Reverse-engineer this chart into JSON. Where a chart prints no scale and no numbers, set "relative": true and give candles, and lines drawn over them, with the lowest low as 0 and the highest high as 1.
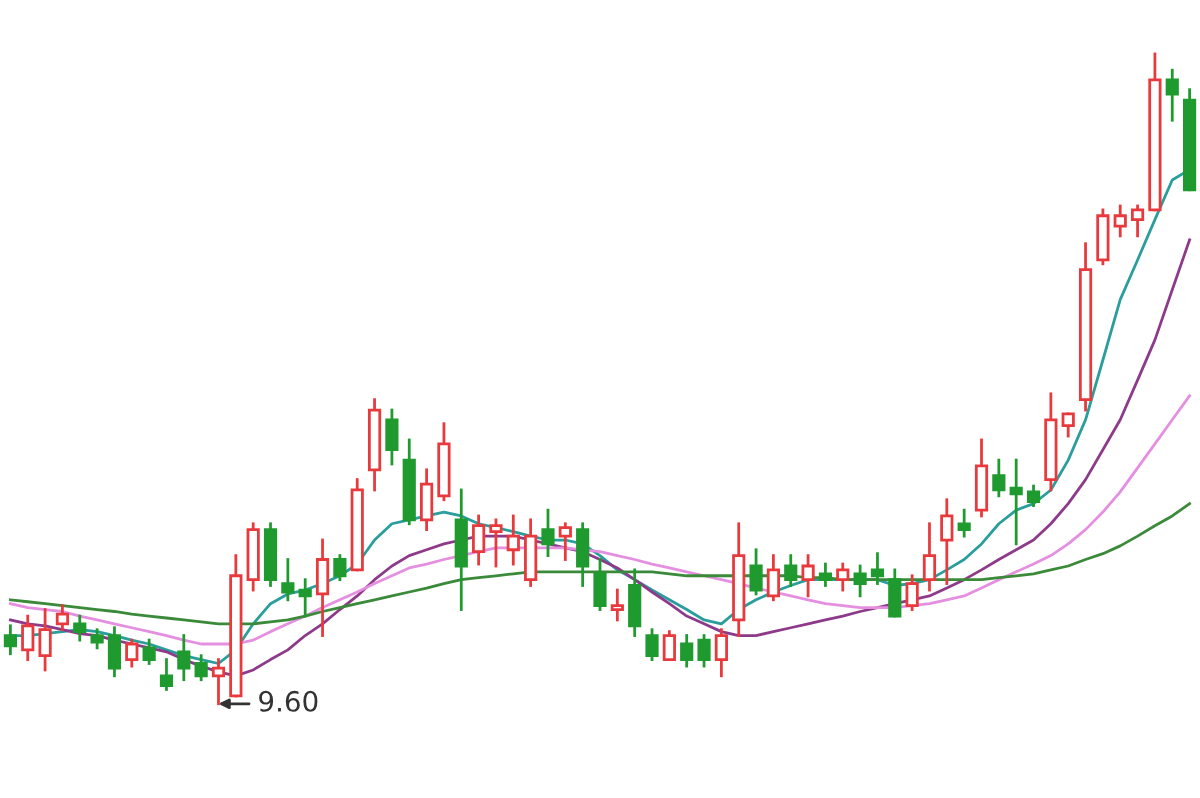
{
  "chart_data": {
    "type": "candlestick",
    "relative": true,
    "categories": [
      null,
      null,
      null,
      null,
      null,
      null,
      null,
      null,
      null,
      null,
      null,
      null,
      null,
      null,
      null,
      null,
      null,
      null,
      null,
      null,
      null,
      null,
      null,
      null,
      null,
      null,
      null,
      null,
      null,
      null,
      null,
      null,
      null,
      null,
      null,
      null,
      null,
      null,
      null,
      null,
      null,
      null,
      null,
      null,
      null,
      null,
      null,
      null,
      null,
      null,
      null,
      null,
      null,
      null,
      null,
      null,
      null,
      null,
      null,
      null,
      null,
      null,
      null,
      null,
      null,
      null,
      null,
      null,
      null
    ],
    "ohlc": [
      [
        0.105,
        0.12,
        0.077,
        0.089
      ],
      [
        0.083,
        0.135,
        0.068,
        0.12
      ],
      [
        0.074,
        0.145,
        0.052,
        0.114
      ],
      [
        0.123,
        0.151,
        0.114,
        0.138
      ],
      [
        0.123,
        0.135,
        0.098,
        0.111
      ],
      [
        0.105,
        0.114,
        0.086,
        0.095
      ],
      [
        0.105,
        0.117,
        0.043,
        0.055
      ],
      [
        0.068,
        0.098,
        0.058,
        0.092
      ],
      [
        0.086,
        0.098,
        0.062,
        0.068
      ],
      [
        0.043,
        0.068,
        0.022,
        0.028
      ],
      [
        0.08,
        0.105,
        0.037,
        0.055
      ],
      [
        0.062,
        0.074,
        0.037,
        0.043
      ],
      [
        0.043,
        0.068,
        0,
        0.055
      ],
      [
        0.012,
        0.228,
        0.012,
        0.197
      ],
      [
        0.191,
        0.277,
        0.175,
        0.268
      ],
      [
        0.268,
        0.277,
        0.182,
        0.191
      ],
      [
        0.185,
        0.222,
        0.16,
        0.172
      ],
      [
        0.175,
        0.191,
        0.135,
        0.166
      ],
      [
        0.169,
        0.252,
        0.105,
        0.222
      ],
      [
        0.222,
        0.228,
        0.191,
        0.197
      ],
      [
        0.206,
        0.345,
        0.206,
        0.329
      ],
      [
        0.36,
        0.468,
        0.329,
        0.452
      ],
      [
        0.437,
        0.452,
        0.369,
        0.391
      ],
      [
        0.375,
        0.406,
        0.277,
        0.283
      ],
      [
        0.283,
        0.36,
        0.268,
        0.338
      ],
      [
        0.32,
        0.431,
        0.314,
        0.4
      ],
      [
        0.283,
        0.329,
        0.145,
        0.212
      ],
      [
        0.234,
        0.289,
        0.215,
        0.274
      ],
      [
        0.265,
        0.283,
        0.212,
        0.274
      ],
      [
        0.237,
        0.289,
        0.215,
        0.258
      ],
      [
        0.191,
        0.283,
        0.182,
        0.258
      ],
      [
        0.268,
        0.298,
        0.228,
        0.246
      ],
      [
        0.258,
        0.277,
        0.222,
        0.271
      ],
      [
        0.268,
        0.277,
        0.182,
        0.212
      ],
      [
        0.2,
        0.222,
        0.145,
        0.151
      ],
      [
        0.145,
        0.175,
        0.129,
        0.151
      ],
      [
        0.182,
        0.206,
        0.105,
        0.12
      ],
      [
        0.105,
        0.114,
        0.068,
        0.074
      ],
      [
        0.068,
        0.111,
        0.068,
        0.105
      ],
      [
        0.092,
        0.105,
        0.058,
        0.068
      ],
      [
        0.098,
        0.105,
        0.058,
        0.068
      ],
      [
        0.068,
        0.114,
        0.043,
        0.105
      ],
      [
        0.129,
        0.277,
        0.105,
        0.228
      ],
      [
        0.212,
        0.237,
        0.169,
        0.175
      ],
      [
        0.166,
        0.228,
        0.16,
        0.206
      ],
      [
        0.212,
        0.228,
        0.182,
        0.191
      ],
      [
        0.191,
        0.228,
        0.166,
        0.212
      ],
      [
        0.2,
        0.215,
        0.182,
        0.191
      ],
      [
        0.191,
        0.215,
        0.175,
        0.206
      ],
      [
        0.2,
        0.212,
        0.166,
        0.185
      ],
      [
        0.206,
        0.231,
        0.185,
        0.197
      ],
      [
        0.191,
        0.206,
        0.135,
        0.135
      ],
      [
        0.151,
        0.197,
        0.145,
        0.185
      ],
      [
        0.191,
        0.277,
        0.175,
        0.228
      ],
      [
        0.252,
        0.314,
        0.185,
        0.289
      ],
      [
        0.277,
        0.298,
        0.258,
        0.268
      ],
      [
        0.298,
        0.406,
        0.289,
        0.366
      ],
      [
        0.351,
        0.375,
        0.32,
        0.329
      ],
      [
        0.332,
        0.375,
        0.246,
        0.323
      ],
      [
        0.326,
        0.335,
        0.305,
        0.311
      ],
      [
        0.345,
        0.477,
        0.329,
        0.437
      ],
      [
        0.428,
        0.446,
        0.412,
        0.446
      ],
      [
        0.468,
        0.708,
        0.452,
        0.668
      ],
      [
        0.683,
        0.76,
        0.677,
        0.751
      ],
      [
        0.735,
        0.766,
        0.72,
        0.751
      ],
      [
        0.745,
        0.766,
        0.72,
        0.76
      ],
      [
        0.76,
        1,
        0.76,
        0.96
      ],
      [
        0.96,
        0.975,
        0.898,
        0.938
      ],
      [
        0.929,
        0.945,
        0.791,
        0.791
      ]
    ],
    "colors": [
      "#1f9a2e",
      "#e8393c",
      "#e8393c",
      "#e8393c",
      "#1f9a2e",
      "#1f9a2e",
      "#1f9a2e",
      "#e8393c",
      "#1f9a2e",
      "#1f9a2e",
      "#1f9a2e",
      "#1f9a2e",
      "#e8393c",
      "#e8393c",
      "#e8393c",
      "#1f9a2e",
      "#1f9a2e",
      "#1f9a2e",
      "#e8393c",
      "#1f9a2e",
      "#e8393c",
      "#e8393c",
      "#1f9a2e",
      "#1f9a2e",
      "#e8393c",
      "#e8393c",
      "#1f9a2e",
      "#e8393c",
      "#e8393c",
      "#e8393c",
      "#e8393c",
      "#1f9a2e",
      "#e8393c",
      "#1f9a2e",
      "#1f9a2e",
      "#e8393c",
      "#1f9a2e",
      "#1f9a2e",
      "#e8393c",
      "#1f9a2e",
      "#1f9a2e",
      "#e8393c",
      "#e8393c",
      "#1f9a2e",
      "#e8393c",
      "#1f9a2e",
      "#e8393c",
      "#1f9a2e",
      "#e8393c",
      "#1f9a2e",
      "#1f9a2e",
      "#1f9a2e",
      "#e8393c",
      "#e8393c",
      "#e8393c",
      "#1f9a2e",
      "#e8393c",
      "#1f9a2e",
      "#1f9a2e",
      "#1f9a2e",
      "#e8393c",
      "#e8393c",
      "#e8393c",
      "#e8393c",
      "#e8393c",
      "#e8393c",
      "#e8393c",
      "#1f9a2e",
      "#1f9a2e"
    ],
    "series": [
      {
        "type": "line",
        "color": "#2a9d9d",
        "values": [
          0.105,
          0.105,
          0.108,
          0.111,
          0.114,
          0.111,
          0.105,
          0.098,
          0.092,
          0.083,
          0.074,
          0.068,
          0.062,
          0.083,
          0.123,
          0.154,
          0.169,
          0.175,
          0.185,
          0.197,
          0.215,
          0.252,
          0.277,
          0.283,
          0.289,
          0.295,
          0.289,
          0.277,
          0.271,
          0.265,
          0.258,
          0.252,
          0.252,
          0.246,
          0.228,
          0.206,
          0.191,
          0.175,
          0.16,
          0.145,
          0.129,
          0.123,
          0.145,
          0.16,
          0.172,
          0.182,
          0.191,
          0.191,
          0.191,
          0.191,
          0.191,
          0.182,
          0.185,
          0.191,
          0.206,
          0.222,
          0.246,
          0.277,
          0.298,
          0.308,
          0.329,
          0.375,
          0.437,
          0.529,
          0.622,
          0.683,
          0.745,
          0.806,
          0.822
        ]
      },
      {
        "type": "line",
        "color": "#8e3a8a",
        "values": [
          0.129,
          0.123,
          0.12,
          0.114,
          0.108,
          0.105,
          0.098,
          0.092,
          0.086,
          0.08,
          0.068,
          0.058,
          0.049,
          0.043,
          0.052,
          0.068,
          0.083,
          0.105,
          0.123,
          0.145,
          0.166,
          0.191,
          0.212,
          0.228,
          0.237,
          0.246,
          0.252,
          0.258,
          0.258,
          0.258,
          0.252,
          0.246,
          0.24,
          0.234,
          0.222,
          0.209,
          0.191,
          0.172,
          0.154,
          0.135,
          0.123,
          0.111,
          0.105,
          0.105,
          0.111,
          0.117,
          0.123,
          0.129,
          0.135,
          0.142,
          0.148,
          0.154,
          0.16,
          0.166,
          0.178,
          0.191,
          0.206,
          0.222,
          0.237,
          0.252,
          0.277,
          0.308,
          0.345,
          0.391,
          0.437,
          0.498,
          0.56,
          0.637,
          0.714
        ]
      },
      {
        "type": "line",
        "color": "#e58fe0",
        "values": [
          0.154,
          0.148,
          0.145,
          0.142,
          0.135,
          0.129,
          0.123,
          0.117,
          0.111,
          0.105,
          0.098,
          0.092,
          0.092,
          0.092,
          0.098,
          0.111,
          0.123,
          0.135,
          0.148,
          0.16,
          0.172,
          0.185,
          0.197,
          0.209,
          0.215,
          0.222,
          0.228,
          0.234,
          0.24,
          0.24,
          0.24,
          0.24,
          0.24,
          0.237,
          0.234,
          0.228,
          0.222,
          0.215,
          0.209,
          0.203,
          0.197,
          0.191,
          0.185,
          0.178,
          0.172,
          0.166,
          0.16,
          0.154,
          0.151,
          0.148,
          0.148,
          0.148,
          0.151,
          0.154,
          0.16,
          0.166,
          0.178,
          0.191,
          0.203,
          0.215,
          0.228,
          0.246,
          0.268,
          0.295,
          0.326,
          0.363,
          0.4,
          0.437,
          0.474
        ]
      },
      {
        "type": "line",
        "color": "#3a8a3a",
        "values": [
          0.16,
          0.157,
          0.154,
          0.151,
          0.148,
          0.145,
          0.142,
          0.138,
          0.135,
          0.132,
          0.129,
          0.126,
          0.123,
          0.123,
          0.123,
          0.126,
          0.129,
          0.135,
          0.142,
          0.148,
          0.154,
          0.16,
          0.166,
          0.172,
          0.178,
          0.185,
          0.191,
          0.194,
          0.197,
          0.2,
          0.203,
          0.203,
          0.203,
          0.203,
          0.203,
          0.203,
          0.203,
          0.203,
          0.2,
          0.197,
          0.197,
          0.197,
          0.197,
          0.197,
          0.197,
          0.197,
          0.194,
          0.194,
          0.191,
          0.191,
          0.191,
          0.191,
          0.191,
          0.191,
          0.191,
          0.191,
          0.191,
          0.194,
          0.197,
          0.2,
          0.206,
          0.212,
          0.222,
          0.231,
          0.243,
          0.258,
          0.274,
          0.289,
          0.308
        ]
      }
    ],
    "annotations": [
      "9.60"
    ]
  }
}
